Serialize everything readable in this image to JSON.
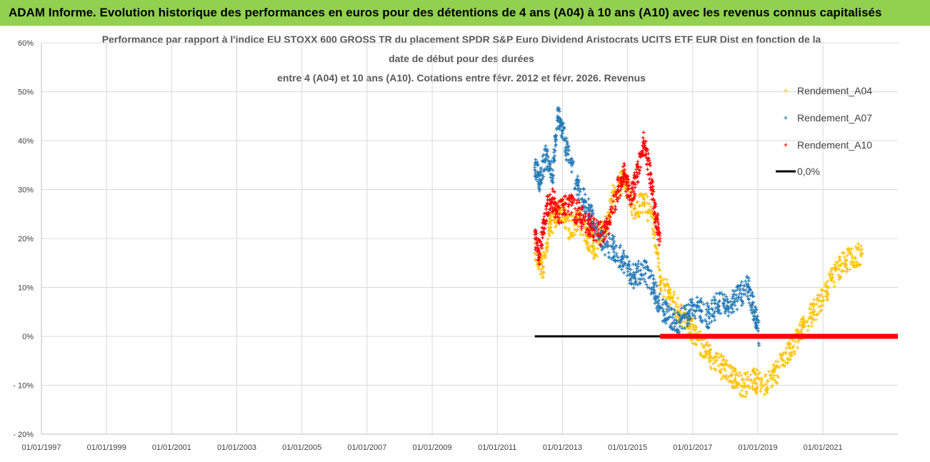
{
  "header": {
    "title": "ADAM Informe. Evolution historique des performances en euros pour des détentions de 4 ans (A04) à 10 ans (A10) avec les revenus connus capitalisés"
  },
  "chart_data": {
    "type": "scatter",
    "title_lines": [
      "Performance par rapport à l'indice EU STOXX 600 GROSS TR  du placement SPDR S&P Euro Dividend Aristocrats UCITS ETF EUR Dist en fonction de la",
      "date de début pour des durées",
      "entre 4 (A04) et 10 ans (A10). Cotations entre févr. 2012 et févr. 2026. Revenus"
    ],
    "xlabel": "",
    "ylabel": "",
    "xlim": [
      1997,
      2023.3
    ],
    "ylim": [
      -20,
      60
    ],
    "y_ticks": [
      60,
      50,
      40,
      30,
      20,
      10,
      0,
      -10,
      -20
    ],
    "y_tick_labels": [
      "60%",
      "50%",
      "40%",
      "30%",
      "20%",
      "10%",
      "0%",
      "- 10%",
      "- 20%"
    ],
    "x_ticks": [
      1997,
      1999,
      2001,
      2003,
      2005,
      2007,
      2009,
      2011,
      2013,
      2015,
      2017,
      2019,
      2021
    ],
    "x_tick_labels": [
      "01/01/1997",
      "01/01/1999",
      "01/01/2001",
      "01/01/2003",
      "01/01/2005",
      "01/01/2007",
      "01/01/2009",
      "01/01/2011",
      "01/01/2013",
      "01/01/2015",
      "01/01/2017",
      "01/01/2019",
      "01/01/2021"
    ],
    "grid": true,
    "legend_position": "right",
    "colors": {
      "A04": "#ffc000",
      "A07": "#1f77b4",
      "A10": "#ff0000",
      "zero": "#000000"
    },
    "series": [
      {
        "name": "Rendement_A04",
        "key": "A04",
        "x": [
          2012.15,
          2012.4,
          2012.6,
          2012.8,
          2013.0,
          2013.2,
          2013.5,
          2013.8,
          2014.0,
          2014.3,
          2014.6,
          2014.9,
          2015.2,
          2015.5,
          2015.8,
          2016.0,
          2016.3,
          2016.6,
          2016.9,
          2017.1,
          2017.4,
          2017.7,
          2018.0,
          2018.3,
          2018.6,
          2018.9,
          2019.2,
          2019.5,
          2019.8,
          2020.1,
          2020.4,
          2020.7,
          2021.0,
          2021.3,
          2021.6,
          2021.9,
          2022.2
        ],
        "values": [
          17,
          14,
          22,
          25,
          26,
          22,
          24,
          20,
          18,
          22,
          30,
          32,
          26,
          28,
          23,
          12,
          8,
          5,
          2,
          0,
          -3,
          -5,
          -7,
          -9,
          -10,
          -9,
          -10,
          -8,
          -5,
          -2,
          2,
          5,
          8,
          12,
          15,
          16,
          17
        ]
      },
      {
        "name": "Rendement_A07",
        "key": "A07",
        "x": [
          2012.15,
          2012.3,
          2012.5,
          2012.7,
          2012.85,
          2013.0,
          2013.2,
          2013.5,
          2013.8,
          2014.0,
          2014.3,
          2014.6,
          2014.9,
          2015.2,
          2015.5,
          2015.8,
          2016.0,
          2016.3,
          2016.6,
          2016.9,
          2017.2,
          2017.5,
          2017.8,
          2018.1,
          2018.4,
          2018.7,
          2018.9,
          2019.05
        ],
        "values": [
          35,
          32,
          37,
          33,
          45,
          42,
          36,
          30,
          26,
          22,
          19,
          18,
          15,
          12,
          14,
          10,
          6,
          4,
          3,
          5,
          6,
          4,
          7,
          6,
          8,
          10,
          5,
          0
        ]
      },
      {
        "name": "Rendement_A10",
        "key": "A10",
        "x": [
          2012.15,
          2012.3,
          2012.5,
          2012.7,
          2012.9,
          2013.2,
          2013.5,
          2013.8,
          2014.1,
          2014.4,
          2014.7,
          2014.9,
          2015.1,
          2015.3,
          2015.5,
          2015.7,
          2015.85,
          2016.0
        ],
        "values": [
          20,
          17,
          26,
          28,
          25,
          27,
          25,
          23,
          21,
          22,
          30,
          33,
          28,
          33,
          40,
          33,
          25,
          20
        ]
      }
    ],
    "zero_line": {
      "name": "0,0%",
      "value": 0,
      "x_start": 2012.15,
      "x_end": 2016.0
    },
    "a10_zero_run": {
      "value": 0,
      "x_start": 2016.0,
      "x_end": 2023.3
    }
  }
}
